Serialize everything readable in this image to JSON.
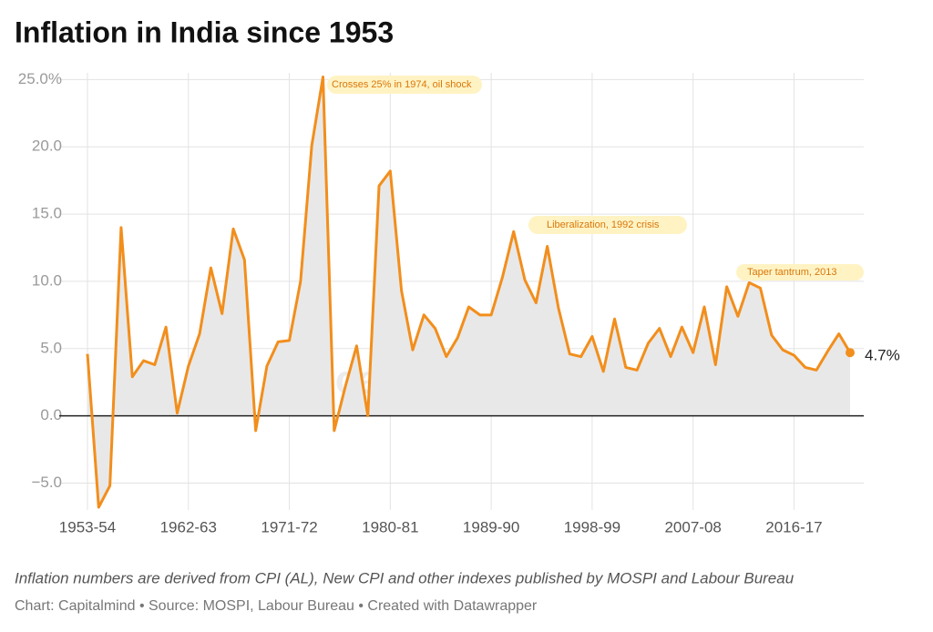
{
  "chart_data": {
    "type": "line",
    "title": "Inflation in India since 1953",
    "categories": [
      "1953-54",
      null,
      null,
      null,
      null,
      null,
      null,
      null,
      null,
      "1962-63",
      null,
      null,
      null,
      null,
      null,
      null,
      null,
      null,
      "1971-72",
      null,
      null,
      null,
      null,
      null,
      null,
      null,
      null,
      "1980-81",
      null,
      null,
      null,
      null,
      null,
      null,
      null,
      null,
      "1989-90",
      null,
      null,
      null,
      null,
      null,
      null,
      null,
      null,
      "1998-99",
      null,
      null,
      null,
      null,
      null,
      null,
      null,
      null,
      "2007-08",
      null,
      null,
      null,
      null,
      null,
      null,
      null,
      null,
      "2016-17",
      null,
      null,
      null,
      null,
      null
    ],
    "series": [
      {
        "name": "Inflation",
        "color": "#f28e1c",
        "values": [
          4.6,
          -6.8,
          -5.2,
          14.0,
          2.9,
          4.1,
          3.8,
          6.6,
          0.2,
          3.7,
          6.1,
          11.0,
          7.6,
          13.9,
          11.6,
          -1.1,
          3.7,
          5.5,
          5.6,
          10.0,
          20.1,
          25.2,
          -1.1,
          2.2,
          5.2,
          0.0,
          17.1,
          18.2,
          9.3,
          4.9,
          7.5,
          6.5,
          4.4,
          5.8,
          8.1,
          7.5,
          7.5,
          10.3,
          13.7,
          10.1,
          8.4,
          12.6,
          8.0,
          4.6,
          4.4,
          5.9,
          3.3,
          7.2,
          3.6,
          3.4,
          5.4,
          6.5,
          4.4,
          6.6,
          4.7,
          8.1,
          3.8,
          9.6,
          7.4,
          9.9,
          9.5,
          6.0,
          4.9,
          4.5,
          3.6,
          3.4,
          4.8,
          6.1,
          4.7
        ],
        "value_labels": [
          null,
          null,
          null,
          null,
          null,
          null,
          null,
          null,
          null,
          null,
          null,
          null,
          null,
          null,
          null,
          null,
          null,
          null,
          null,
          null,
          null,
          null,
          null,
          null,
          null,
          null,
          null,
          null,
          null,
          null,
          null,
          null,
          null,
          null,
          null,
          null,
          null,
          null,
          null,
          null,
          null,
          null,
          null,
          null,
          null,
          null,
          null,
          null,
          null,
          null,
          null,
          null,
          null,
          null,
          null,
          null,
          null,
          null,
          null,
          null,
          null,
          null,
          null,
          null,
          null,
          null,
          null,
          null,
          "4.7%"
        ]
      }
    ],
    "area_color": "#e8e8e8",
    "ylim": [
      -7,
      25.5
    ],
    "yticks": [
      {
        "value": -5,
        "label": "−5.0"
      },
      {
        "value": 0,
        "label": "0.0"
      },
      {
        "value": 5,
        "label": "5.0"
      },
      {
        "value": 10,
        "label": "10.0"
      },
      {
        "value": 15,
        "label": "15.0"
      },
      {
        "value": 20,
        "label": "20.0"
      },
      {
        "value": 25,
        "label": "25.0%"
      }
    ],
    "grid": true,
    "annotations": [
      "Crosses 25% in 1974, oil shock",
      "Liberalization, 1992 crisis",
      "Taper tantrum, 2013"
    ],
    "watermark": "capitalmind",
    "notes": "Inflation numbers are derived from CPI (AL), New CPI and other indexes published by MOSPI and Labour Bureau",
    "source": "Chart: Capitalmind • Source: MOSPI, Labour Bureau • Created with Datawrapper"
  }
}
